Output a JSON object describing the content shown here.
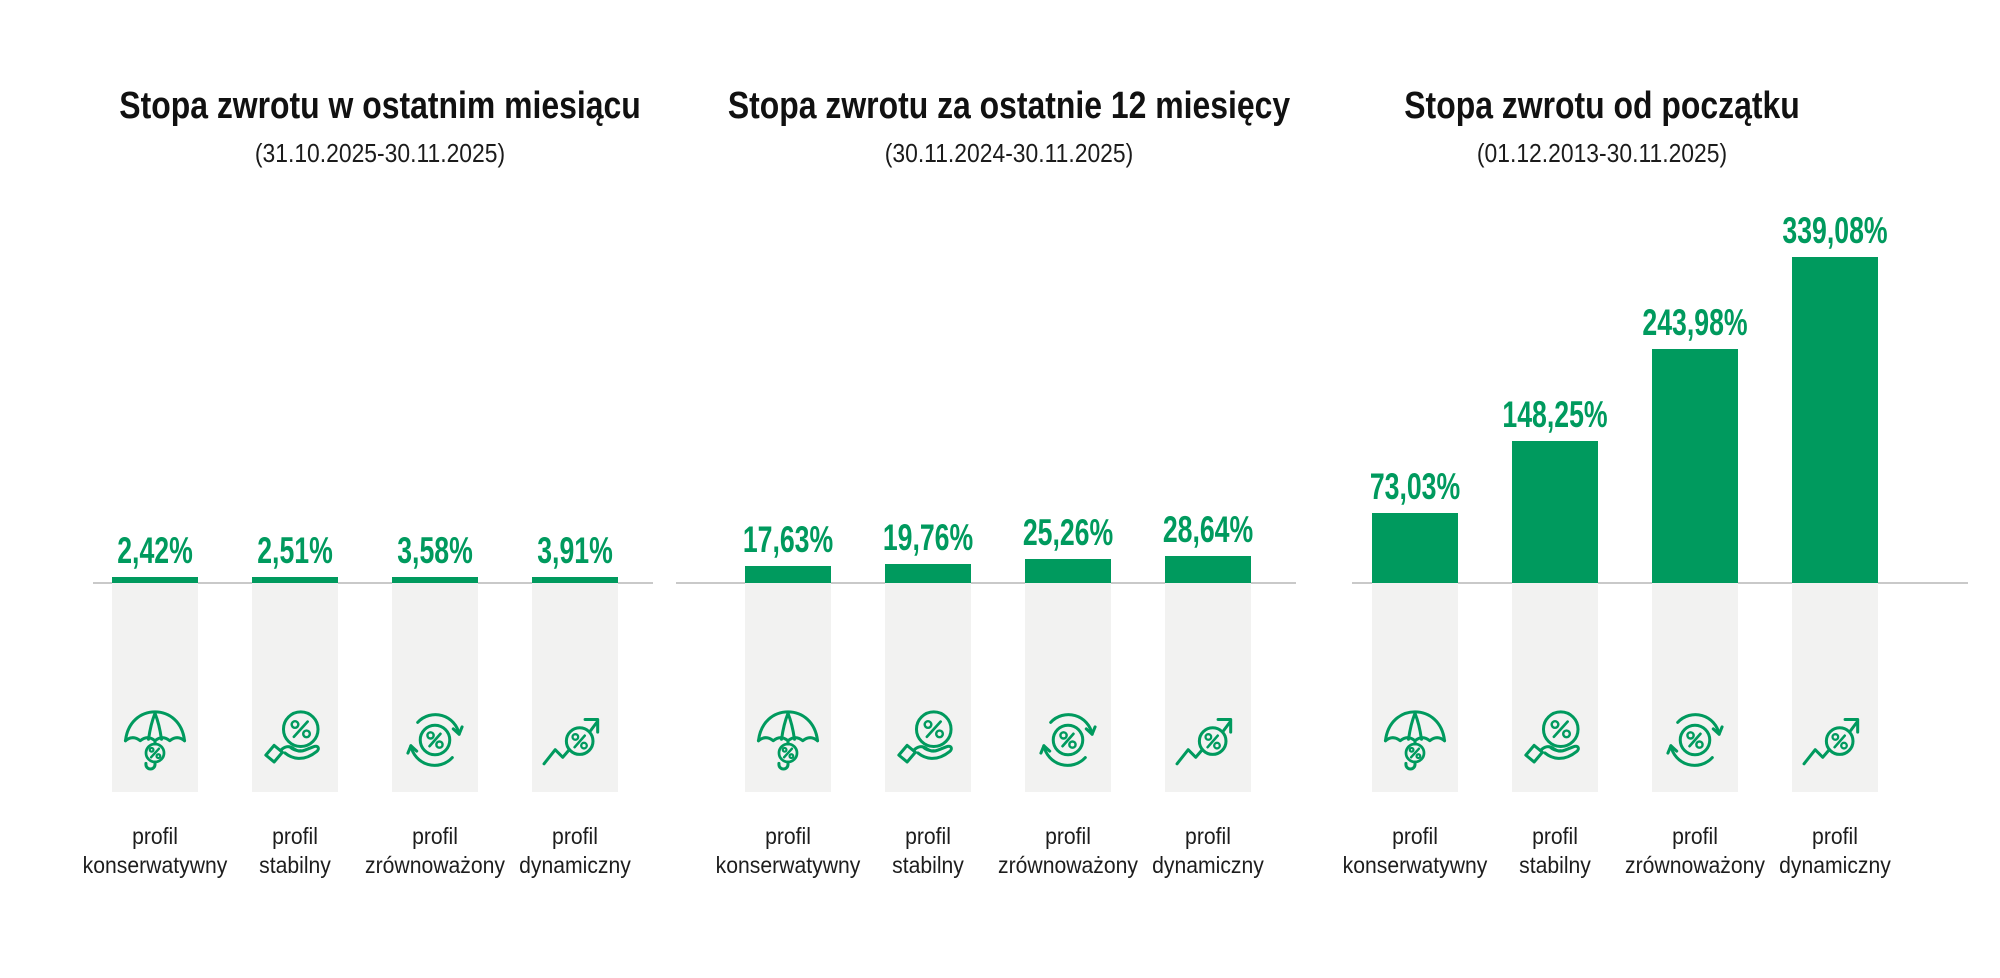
{
  "page": {
    "background": "#ffffff"
  },
  "colors": {
    "accent_green": "#009a5e",
    "column_gray": "#f2f2f1",
    "baseline_gray": "#c9c9c9",
    "title_black": "#111111",
    "label_dark": "#1d1d1d"
  },
  "profiles": [
    {
      "label_line1": "profil",
      "label_line2": "konserwatywny",
      "icon": "umbrella-percent-icon"
    },
    {
      "label_line1": "profil",
      "label_line2": "stabilny",
      "icon": "hand-percent-icon"
    },
    {
      "label_line1": "profil",
      "label_line2": "zrównoważony",
      "icon": "arrows-percent-icon"
    },
    {
      "label_line1": "profil",
      "label_line2": "dynamiczny",
      "icon": "trend-arrow-percent-icon"
    }
  ],
  "chart_data": [
    {
      "type": "bar",
      "title": "Stopa zwrotu w ostatnim miesiącu",
      "subtitle": "(31.10.2025-30.11.2025)",
      "categories": [
        "profil konserwatywny",
        "profil stabilny",
        "profil zrównoważony",
        "profil dynamiczny"
      ],
      "values": [
        2.42,
        2.51,
        3.58,
        3.91
      ],
      "value_labels": [
        "2,42%",
        "2,51%",
        "3,58%",
        "3,91%"
      ],
      "unit": "%",
      "bar_color": "#009a5e",
      "ylim": [
        0,
        360
      ],
      "grid": false,
      "legend": false
    },
    {
      "type": "bar",
      "title": "Stopa zwrotu za ostatnie 12 miesięcy",
      "subtitle": "(30.11.2024-30.11.2025)",
      "categories": [
        "profil konserwatywny",
        "profil stabilny",
        "profil zrównoważony",
        "profil dynamiczny"
      ],
      "values": [
        17.63,
        19.76,
        25.26,
        28.64
      ],
      "value_labels": [
        "17,63%",
        "19,76%",
        "25,26%",
        "28,64%"
      ],
      "unit": "%",
      "bar_color": "#009a5e",
      "ylim": [
        0,
        360
      ],
      "grid": false,
      "legend": false
    },
    {
      "type": "bar",
      "title": "Stopa zwrotu od początku",
      "subtitle": "(01.12.2013-30.11.2025)",
      "categories": [
        "profil konserwatywny",
        "profil stabilny",
        "profil zrównoważony",
        "profil dynamiczny"
      ],
      "values": [
        73.03,
        148.25,
        243.98,
        339.08
      ],
      "value_labels": [
        "73,03%",
        "148,25%",
        "243,98%",
        "339,08%"
      ],
      "unit": "%",
      "bar_color": "#009a5e",
      "ylim": [
        0,
        360
      ],
      "grid": false,
      "legend": false
    }
  ]
}
